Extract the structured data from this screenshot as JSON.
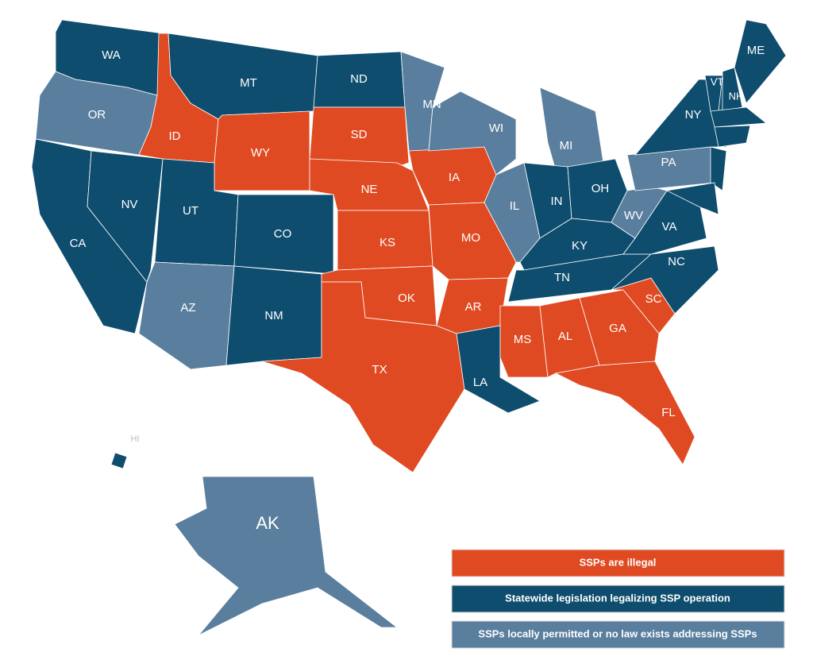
{
  "states": [
    {
      "label": "WA",
      "category": 1
    },
    {
      "label": "OR",
      "category": 2
    },
    {
      "label": "CA",
      "category": 1
    },
    {
      "label": "NV",
      "category": 1
    },
    {
      "label": "ID",
      "category": 0
    },
    {
      "label": "MT",
      "category": 1
    },
    {
      "label": "WY",
      "category": 0
    },
    {
      "label": "UT",
      "category": 1
    },
    {
      "label": "CO",
      "category": 1
    },
    {
      "label": "AZ",
      "category": 2
    },
    {
      "label": "NM",
      "category": 1
    },
    {
      "label": "ND",
      "category": 1
    },
    {
      "label": "SD",
      "category": 0
    },
    {
      "label": "NE",
      "category": 0
    },
    {
      "label": "KS",
      "category": 0
    },
    {
      "label": "OK",
      "category": 0
    },
    {
      "label": "TX",
      "category": 0
    },
    {
      "label": "MN",
      "category": 2
    },
    {
      "label": "IA",
      "category": 0
    },
    {
      "label": "MO",
      "category": 0
    },
    {
      "label": "AR",
      "category": 0
    },
    {
      "label": "LA",
      "category": 1
    },
    {
      "label": "WI",
      "category": 2
    },
    {
      "label": "IL",
      "category": 2
    },
    {
      "label": "MI",
      "category": 2
    },
    {
      "label": "IN",
      "category": 1
    },
    {
      "label": "OH",
      "category": 1
    },
    {
      "label": "KY",
      "category": 1
    },
    {
      "label": "TN",
      "category": 1
    },
    {
      "label": "MS",
      "category": 0
    },
    {
      "label": "AL",
      "category": 0
    },
    {
      "label": "GA",
      "category": 0
    },
    {
      "label": "FL",
      "category": 0
    },
    {
      "label": "SC",
      "category": 0
    },
    {
      "label": "NC",
      "category": 1
    },
    {
      "label": "VA",
      "category": 1
    },
    {
      "label": "WV",
      "category": 2
    },
    {
      "label": "PA",
      "category": 2
    },
    {
      "label": "NY",
      "category": 1
    },
    {
      "label": null,
      "category": 1
    },
    {
      "label": "VT",
      "category": 1
    },
    {
      "label": "NH",
      "category": 1
    },
    {
      "label": "ME",
      "category": 1
    },
    {
      "label": null,
      "category": 1
    },
    {
      "label": null,
      "category": 1
    },
    {
      "label": null,
      "category": 1
    },
    {
      "label": "HI",
      "category": 1
    },
    {
      "label": "AK",
      "category": 2
    }
  ],
  "legend": [
    {
      "label": "SSPs are illegal",
      "color": "#e04a22"
    },
    {
      "label": "Statewide legislation legalizing SSP operation",
      "color": "#0e4d6e"
    },
    {
      "label": "SSPs locally permitted or no law exists addressing SSPs",
      "color": "#5a7f9e"
    }
  ]
}
